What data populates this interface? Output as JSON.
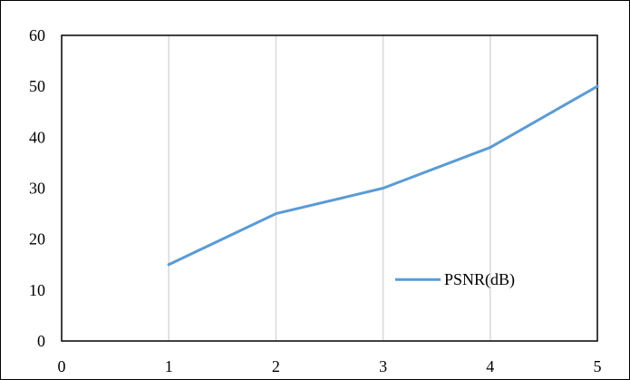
{
  "chart_data": {
    "type": "line",
    "title": "",
    "xlabel": "",
    "ylabel": "",
    "x": [
      1,
      2,
      3,
      4,
      5
    ],
    "xlim": [
      0,
      5
    ],
    "ylim": [
      0,
      60
    ],
    "xticks": [
      "0",
      "1",
      "2",
      "3",
      "4",
      "5"
    ],
    "yticks": [
      "0",
      "10",
      "20",
      "30",
      "40",
      "50",
      "60"
    ],
    "grid": "vertical",
    "legend_position": "lower-right",
    "series": [
      {
        "name": "PSNR(dB)",
        "values": [
          15,
          25,
          30,
          38,
          50
        ],
        "color": "#5b9bd5"
      }
    ],
    "colors": {
      "grid": "#d9d9d9",
      "axis": "#000000"
    }
  }
}
